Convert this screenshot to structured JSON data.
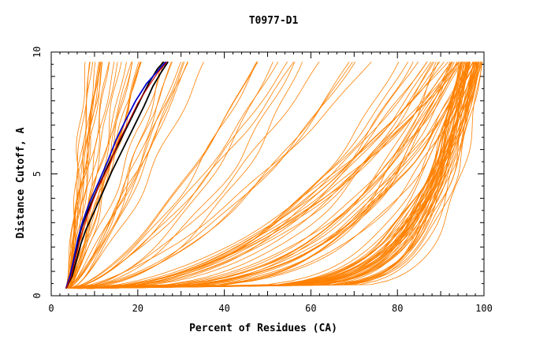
{
  "chart_data": {
    "type": "line",
    "title": "T0977-D1",
    "xlabel": "Percent of Residues (CA)",
    "ylabel": "Distance Cutoff, A",
    "xlim": [
      0,
      100
    ],
    "ylim": [
      0,
      10
    ],
    "x_ticks": [
      "0",
      "20",
      "40",
      "60",
      "80",
      "100"
    ],
    "y_ticks": [
      "0",
      "5",
      "10"
    ],
    "grid": false,
    "legend": "none",
    "colors": {
      "background_models": "#ff8000",
      "highlight_black": "#000000",
      "highlight_blue": "#0000cc",
      "highlight_red": "#cc0000"
    },
    "highlight_series": [
      {
        "color": "black",
        "x": [
          3.4,
          4.5,
          5.5,
          6.2,
          7.0,
          8.5,
          10.5,
          13.0,
          15.5,
          18.0,
          20.5,
          22.5,
          24.5,
          26.0
        ],
        "y": [
          0.3,
          0.8,
          1.5,
          2.2,
          2.8,
          3.5,
          4.3,
          5.3,
          6.2,
          7.1,
          8.0,
          8.7,
          9.3,
          9.6
        ]
      },
      {
        "color": "black",
        "x": [
          3.4,
          4.8,
          5.9,
          6.8,
          8.0,
          9.8,
          11.8,
          14.0,
          16.5,
          19.0,
          21.5,
          23.5,
          25.5,
          27.0
        ],
        "y": [
          0.3,
          0.8,
          1.5,
          2.1,
          2.7,
          3.4,
          4.2,
          5.1,
          6.0,
          6.9,
          7.8,
          8.6,
          9.2,
          9.6
        ]
      },
      {
        "color": "blue",
        "x": [
          3.4,
          4.3,
          5.2,
          6.1,
          7.2,
          8.8,
          10.8,
          13.0,
          15.0,
          17.2,
          19.5,
          22.0,
          24.5,
          26.5
        ],
        "y": [
          0.3,
          0.8,
          1.5,
          2.3,
          3.0,
          3.8,
          4.6,
          5.5,
          6.4,
          7.2,
          8.0,
          8.7,
          9.2,
          9.6
        ]
      },
      {
        "color": "red",
        "x": [
          3.4,
          4.6,
          5.5,
          6.5,
          7.6,
          9.2,
          11.0,
          13.5,
          15.5,
          17.8,
          20.0,
          22.5,
          24.8,
          26.8
        ],
        "y": [
          0.3,
          0.8,
          1.5,
          2.2,
          2.9,
          3.7,
          4.5,
          5.4,
          6.3,
          7.1,
          7.9,
          8.6,
          9.2,
          9.6
        ]
      }
    ],
    "background_families": [
      {
        "count": 12,
        "x_at_10": [
          7,
          12
        ],
        "k": [
          0.9,
          1.2
        ],
        "x0": 3.4
      },
      {
        "count": 14,
        "x_at_10": [
          13,
          22
        ],
        "k": [
          0.75,
          1.1
        ],
        "x0": 3.4
      },
      {
        "count": 10,
        "x_at_10": [
          24,
          38
        ],
        "k": [
          0.6,
          0.9
        ],
        "x0": 3.6
      },
      {
        "count": 14,
        "x_at_10": [
          46,
          74
        ],
        "k": [
          0.45,
          0.7
        ],
        "x0": 4.0
      },
      {
        "count": 16,
        "x_at_10": [
          80,
          96
        ],
        "k": [
          0.35,
          0.55
        ],
        "x0": 5.0
      },
      {
        "count": 20,
        "x_at_10": [
          88,
          99.5
        ],
        "k": [
          0.2,
          0.35
        ],
        "x0": 6.0
      },
      {
        "count": 50,
        "x_at_10": [
          94,
          99.8
        ],
        "k": [
          0.08,
          0.18
        ],
        "x0": 8.0
      }
    ]
  }
}
